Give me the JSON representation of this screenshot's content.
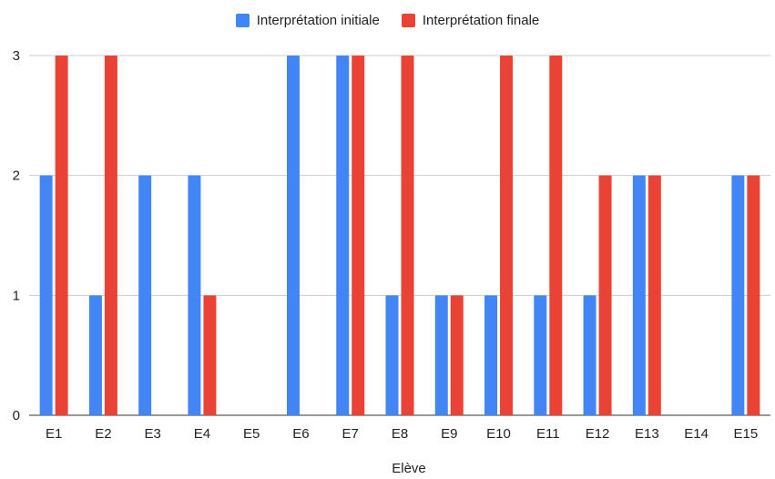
{
  "chart_data": {
    "type": "bar",
    "categories": [
      "E1",
      "E2",
      "E3",
      "E4",
      "E5",
      "E6",
      "E7",
      "E8",
      "E9",
      "E10",
      "E11",
      "E12",
      "E13",
      "E14",
      "E15"
    ],
    "series": [
      {
        "name": "Interprétation initiale",
        "color": "#4285f4",
        "values": [
          2,
          1,
          2,
          2,
          0,
          3,
          3,
          1,
          1,
          1,
          1,
          1,
          2,
          0,
          2
        ]
      },
      {
        "name": "Interprétation finale",
        "color": "#ea4335",
        "values": [
          3,
          3,
          0,
          1,
          0,
          0,
          3,
          3,
          1,
          3,
          3,
          2,
          2,
          0,
          2
        ]
      }
    ],
    "xlabel": "Elève",
    "ylabel": "",
    "ylim": [
      0,
      3
    ],
    "yticks": [
      "0",
      "1",
      "2",
      "3"
    ],
    "grid": true,
    "legend": "top-center"
  }
}
